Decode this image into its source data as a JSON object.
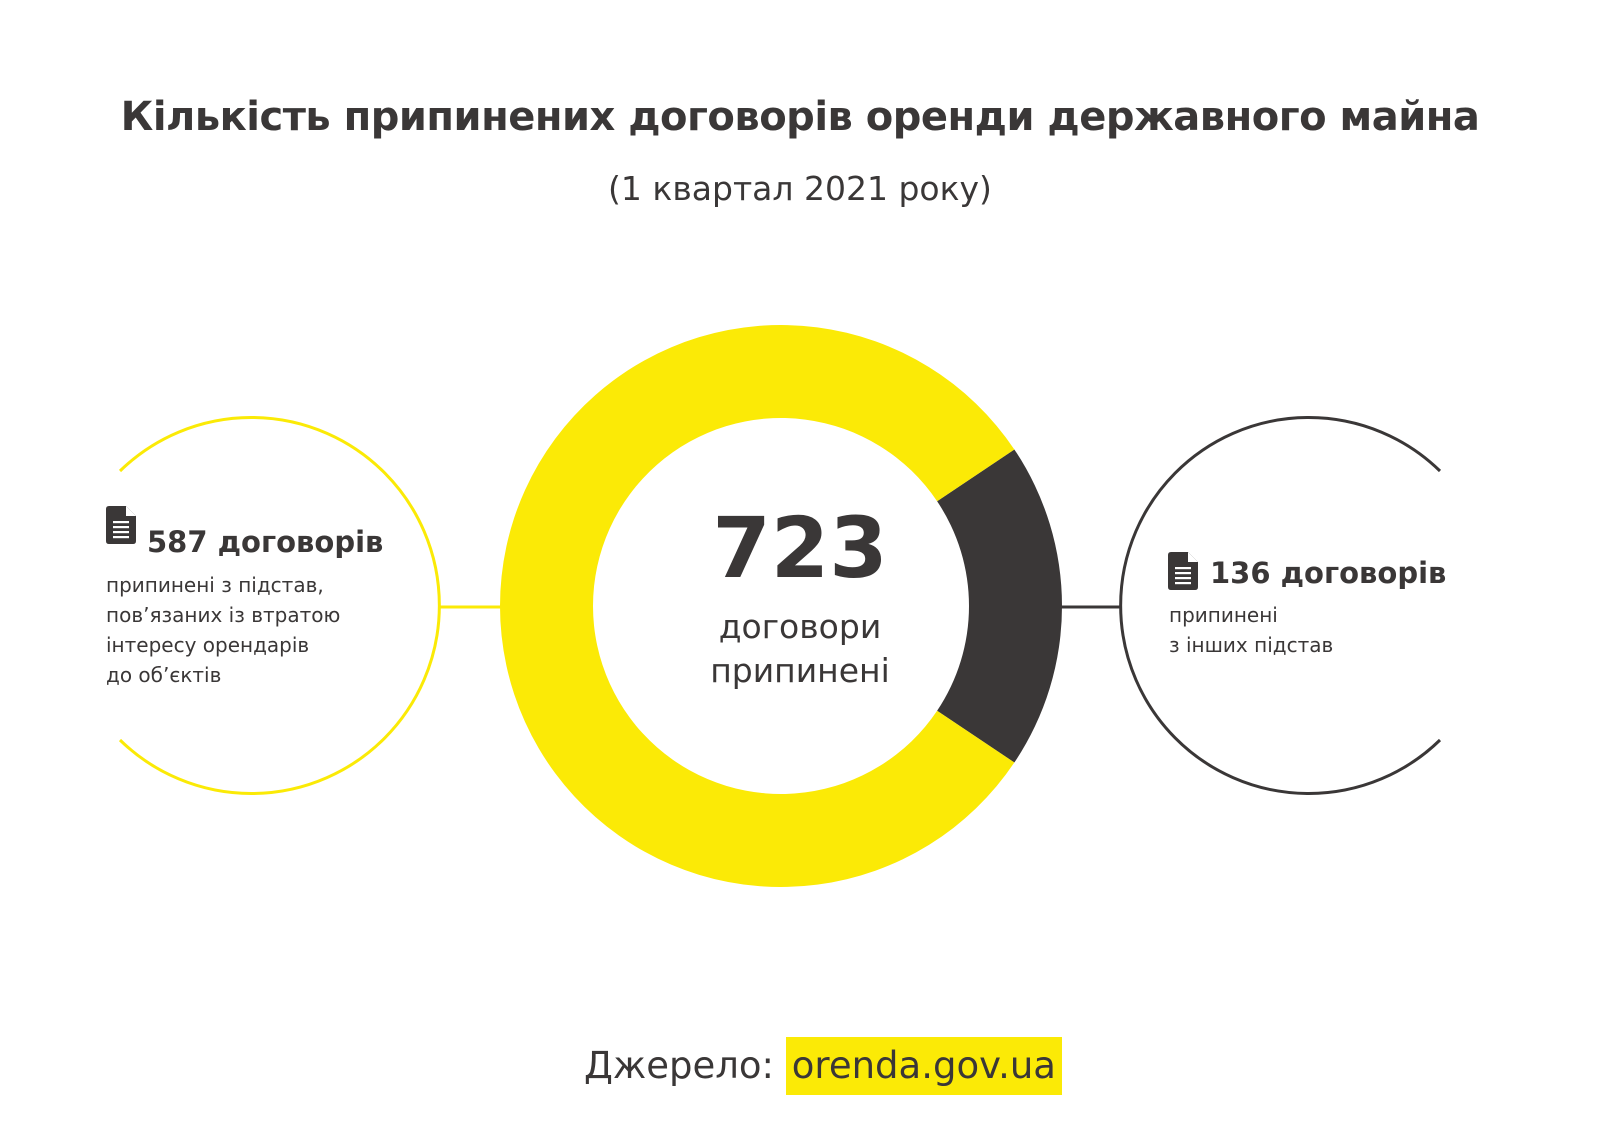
{
  "title": "Кількість припинених договорів оренди державного майна",
  "subtitle": "(1 квартал 2021 року)",
  "colors": {
    "accent": "#fbea06",
    "dark": "#3a3737",
    "background": "#ffffff"
  },
  "chart_data": {
    "type": "pie",
    "variant": "donut",
    "total": 723,
    "total_label_line1": "договори",
    "total_label_line2": "припинені",
    "series": [
      {
        "value": 587,
        "color": "#fbea06",
        "label": "587 договорів",
        "description": [
          "припинені з підстав,",
          "пов’язаних із втратою",
          "інтересу орендарів",
          "до об’єктів"
        ]
      },
      {
        "value": 136,
        "color": "#3a3737",
        "label": "136 договорів",
        "description": [
          "припинені",
          "з інших підстав"
        ]
      }
    ]
  },
  "icons": {
    "left": "document-icon",
    "right": "document-icon"
  },
  "source": {
    "prefix": "Джерело:",
    "link": "orenda.gov.ua"
  }
}
